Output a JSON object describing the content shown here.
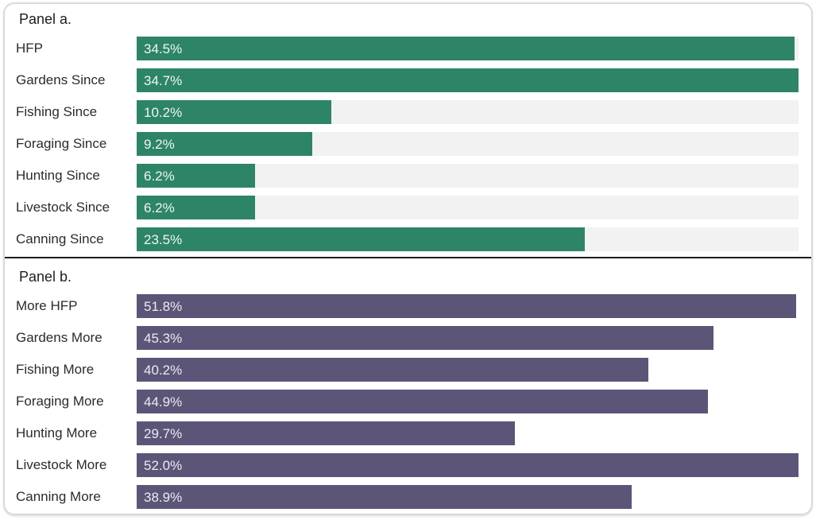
{
  "page": {
    "background": "#ffffff",
    "card_border_color": "#d9d9d9",
    "divider_color": "#1c1c1c",
    "label_text_color": "#2b2b2b",
    "title_text_color": "#1e1e1e"
  },
  "chart_data": [
    {
      "type": "bar",
      "orientation": "horizontal",
      "title": "Panel a.",
      "categories": [
        "HFP",
        "Gardens Since",
        "Fishing Since",
        "Foraging Since",
        "Hunting Since",
        "Livestock Since",
        "Canning Since"
      ],
      "values": [
        34.5,
        34.7,
        10.2,
        9.2,
        6.2,
        6.2,
        23.5
      ],
      "value_labels": [
        "34.5%",
        "34.7%",
        "10.2%",
        "9.2%",
        "6.2%",
        "6.2%",
        "23.5%"
      ],
      "xlabel": "",
      "ylabel": "",
      "xlim": [
        0,
        34.7
      ],
      "grid": false,
      "legend": false,
      "bar_color": "#2e8467",
      "track_color": "#f2f2f2",
      "value_text_color": "#eef7f2"
    },
    {
      "type": "bar",
      "orientation": "horizontal",
      "title": "Panel b.",
      "categories": [
        "More HFP",
        "Gardens More",
        "Fishing More",
        "Foraging More",
        "Hunting More",
        "Livestock More",
        "Canning More"
      ],
      "values": [
        51.8,
        45.3,
        40.2,
        44.9,
        29.7,
        52.0,
        38.9
      ],
      "value_labels": [
        "51.8%",
        "45.3%",
        "40.2%",
        "44.9%",
        "29.7%",
        "52.0%",
        "38.9%"
      ],
      "xlabel": "",
      "ylabel": "",
      "xlim": [
        0,
        52.0
      ],
      "grid": false,
      "legend": false,
      "bar_color": "#5c5578",
      "track_color": "#ffffff",
      "value_text_color": "#eceaf2"
    }
  ]
}
